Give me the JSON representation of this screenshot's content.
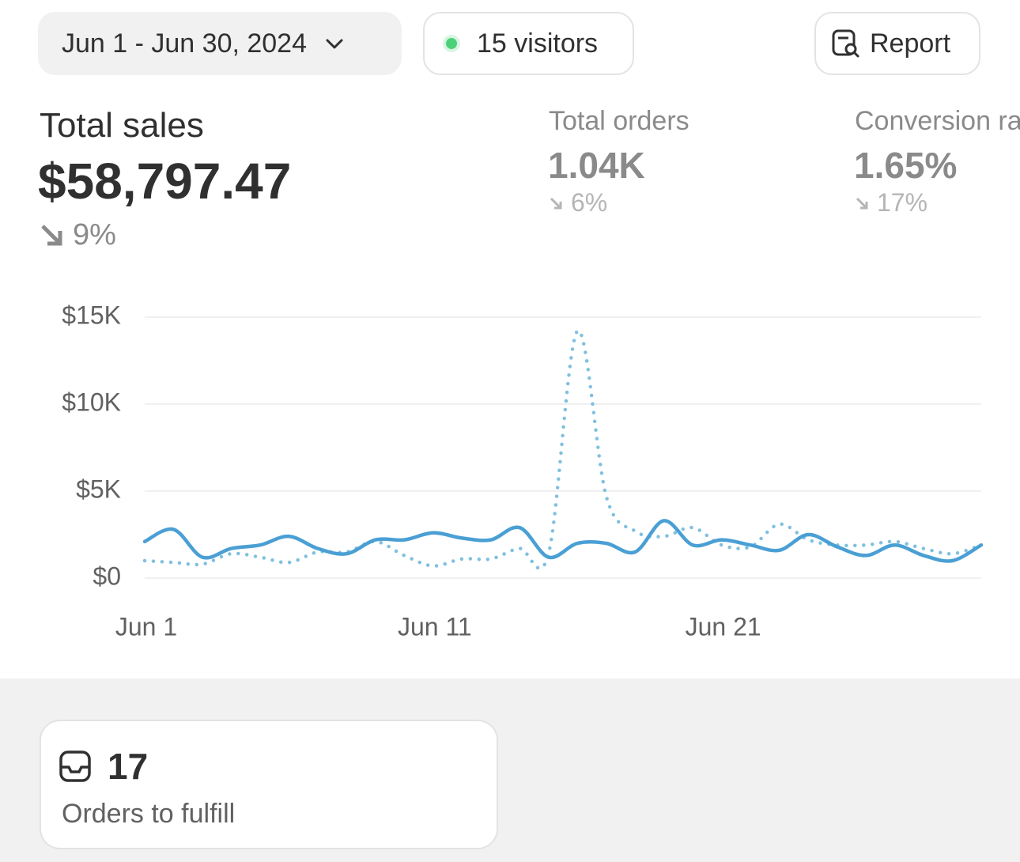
{
  "header": {
    "date_range": "Jun 1 - Jun 30, 2024",
    "visitors": "15 visitors",
    "report": "Report"
  },
  "metrics": [
    {
      "label": "Total sales",
      "value": "$58,797.47",
      "change": "9%"
    },
    {
      "label": "Total orders",
      "value": "1.04K",
      "change": "6%"
    },
    {
      "label": "Conversion rate",
      "value": "1.65%",
      "change": "17%"
    }
  ],
  "chart_data": {
    "type": "line",
    "categories": [
      "Jun 1",
      null,
      null,
      null,
      null,
      null,
      null,
      null,
      null,
      null,
      "Jun 11",
      null,
      null,
      null,
      null,
      null,
      null,
      null,
      null,
      null,
      "Jun 21",
      null,
      null,
      null,
      null,
      null,
      null,
      null,
      null,
      null
    ],
    "series": [
      {
        "color": "#7fc0de",
        "style": "dotted",
        "values": [
          1000,
          900,
          800,
          1400,
          1200,
          900,
          1500,
          1500,
          2100,
          1300,
          700,
          1100,
          1100,
          1700,
          1400,
          14200,
          4700,
          2700,
          2400,
          2900,
          1900,
          1800,
          3100,
          2200,
          1900,
          1900,
          2100,
          1700,
          1400,
          1900
        ]
      },
      {
        "color": "#4a9fd4",
        "style": "solid",
        "values": [
          2100,
          2800,
          1200,
          1700,
          1900,
          2400,
          1700,
          1400,
          2200,
          2200,
          2600,
          2300,
          2200,
          2900,
          1200,
          2000,
          2000,
          1500,
          3300,
          1900,
          2200,
          1900,
          1600,
          2500,
          1800,
          1300,
          1900,
          1300,
          1000,
          1900
        ]
      }
    ],
    "ylim": [
      0,
      15000
    ],
    "yticks": [
      {
        "value": 0,
        "label": "$0"
      },
      {
        "value": 5000,
        "label": "$5K"
      },
      {
        "value": 10000,
        "label": "$10K"
      },
      {
        "value": 15000,
        "label": "$15K"
      }
    ],
    "grid": true
  },
  "card": {
    "count": "17",
    "label": "Orders to fulfill"
  }
}
